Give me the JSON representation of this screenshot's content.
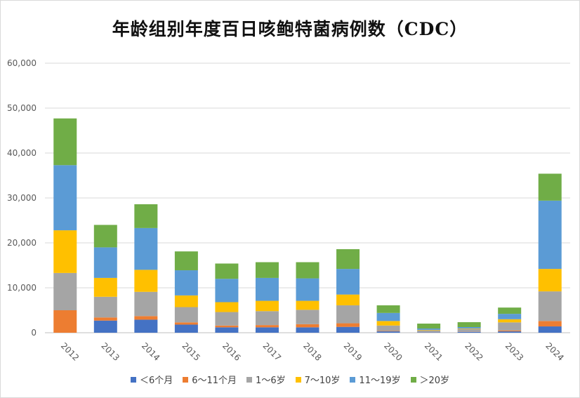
{
  "chart_data": {
    "type": "bar",
    "stacked": true,
    "title": "年龄组别年度百日咳鲍特菌病例数（CDC）",
    "categories": [
      "2012",
      "2013",
      "2014",
      "2015",
      "2016",
      "2017",
      "2018",
      "2019",
      "2020",
      "2021",
      "2022",
      "2023",
      "2024"
    ],
    "ylim": [
      0,
      60000
    ],
    "yticks": [
      "0",
      "10,000",
      "20,000",
      "30,000",
      "40,000",
      "50,000",
      "60,000"
    ],
    "grid": true,
    "legend_position": "bottom",
    "series": [
      {
        "name": "＜6个月",
        "color": "#4472c4",
        "values": [
          0,
          2700,
          2900,
          1800,
          1200,
          1200,
          1200,
          1300,
          300,
          100,
          200,
          300,
          1400
        ]
      },
      {
        "name": "6～11个月",
        "color": "#ed7d31",
        "values": [
          5000,
          700,
          800,
          500,
          400,
          500,
          700,
          800,
          100,
          30,
          50,
          200,
          1200
        ]
      },
      {
        "name": "1～6岁",
        "color": "#a5a5a5",
        "values": [
          8300,
          4600,
          5400,
          3400,
          3000,
          3100,
          3200,
          4000,
          1200,
          400,
          600,
          1800,
          6600
        ]
      },
      {
        "name": "7～10岁",
        "color": "#ffc000",
        "values": [
          9500,
          4200,
          4900,
          2600,
          2200,
          2300,
          2000,
          2400,
          1000,
          100,
          100,
          700,
          5000
        ]
      },
      {
        "name": "11～19岁",
        "color": "#5b9bd5",
        "values": [
          14500,
          6800,
          9300,
          5600,
          5200,
          5100,
          5000,
          5700,
          1800,
          300,
          300,
          1200,
          15200
        ]
      },
      {
        "name": "＞20岁",
        "color": "#70ad47",
        "values": [
          10400,
          5000,
          5300,
          4200,
          3400,
          3500,
          3600,
          4400,
          1700,
          1100,
          1100,
          1400,
          6000
        ]
      }
    ]
  }
}
